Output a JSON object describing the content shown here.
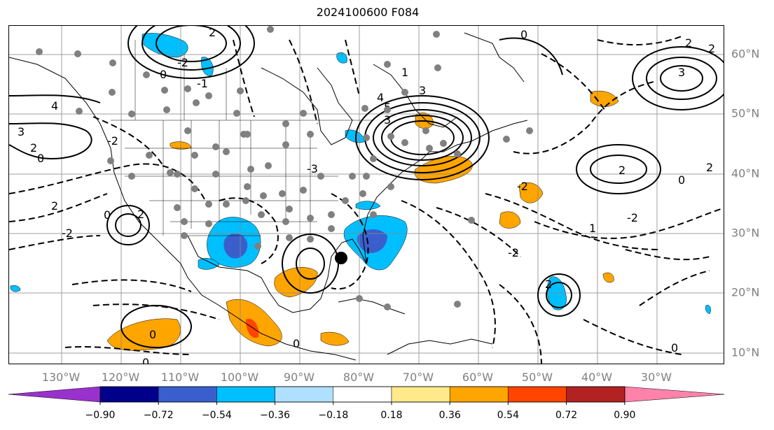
{
  "title": "2024100600 F084",
  "lon_labels": [
    "130°W",
    "120°W",
    "110°W",
    "100°W",
    "90°W",
    "80°W",
    "70°W",
    "60°W",
    "50°W",
    "40°W",
    "30°W"
  ],
  "lat_labels": [
    "60°N",
    "50°N",
    "40°N",
    "30°N",
    "20°N",
    "10°N"
  ],
  "colorbar": {
    "ticks": [
      "−0.90",
      "−0.72",
      "−0.54",
      "−0.36",
      "−0.18",
      "0.18",
      "0.36",
      "0.54",
      "0.72",
      "0.90"
    ],
    "colors": [
      "#9932CC",
      "#00008B",
      "#3A5FCD",
      "#00BFFF",
      "#B0E0FF",
      "#FFFFFF",
      "#FFE98A",
      "#FFA500",
      "#FF4500",
      "#B22222",
      "#FF82AB"
    ]
  },
  "contour_labels": [
    "2",
    "-2",
    "-1",
    "4",
    "3",
    "2",
    "0",
    "0",
    "1",
    "3",
    "5",
    "4",
    "3",
    "2",
    "0",
    "2",
    "2",
    "-2",
    "-2",
    "0",
    "0",
    "-2",
    "-2",
    "2",
    "0",
    "0",
    "2",
    "1",
    "0",
    "-3",
    "2",
    "3",
    "0",
    "-2",
    "2"
  ],
  "storm_marker": "center"
}
